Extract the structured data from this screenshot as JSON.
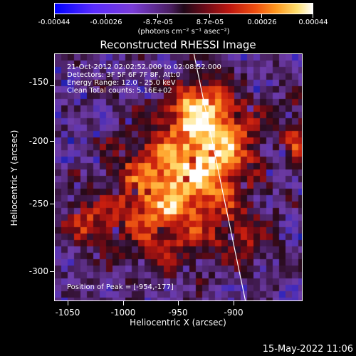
{
  "colorbar": {
    "ticks": [
      "-0.00044",
      "-0.00026",
      "-8.7e-05",
      "8.7e-05",
      "0.00026",
      "0.00044"
    ],
    "unit": "(photons cm⁻² s⁻¹ asec⁻²)"
  },
  "title": "Reconstructed RHESSI Image",
  "info": {
    "time_range": "21-Oct-2012 02:02:52.000 to 02:08:52.000",
    "detectors": "Detectors: 3F 5F 6F 7F 8F, Att:0",
    "energy_range": "Energy Range: 12.0 - 25.0 keV",
    "method_counts": "Clean     Total counts: 5.16E+02"
  },
  "peak_text": "Position of Peak = [-954,-177]",
  "axes": {
    "xlabel": "Heliocentric X (arcsec)",
    "ylabel": "Heliocentric Y (arcsec)",
    "xticks": [
      "-1050",
      "-1000",
      "-950",
      "-900"
    ],
    "yticks": [
      "-150",
      "-200",
      "-250",
      "-300"
    ]
  },
  "footer": "15-May-2022 11:06",
  "colors": {
    "background": "#000000",
    "axis": "#ffffff",
    "limb_line": "#ffffff"
  }
}
